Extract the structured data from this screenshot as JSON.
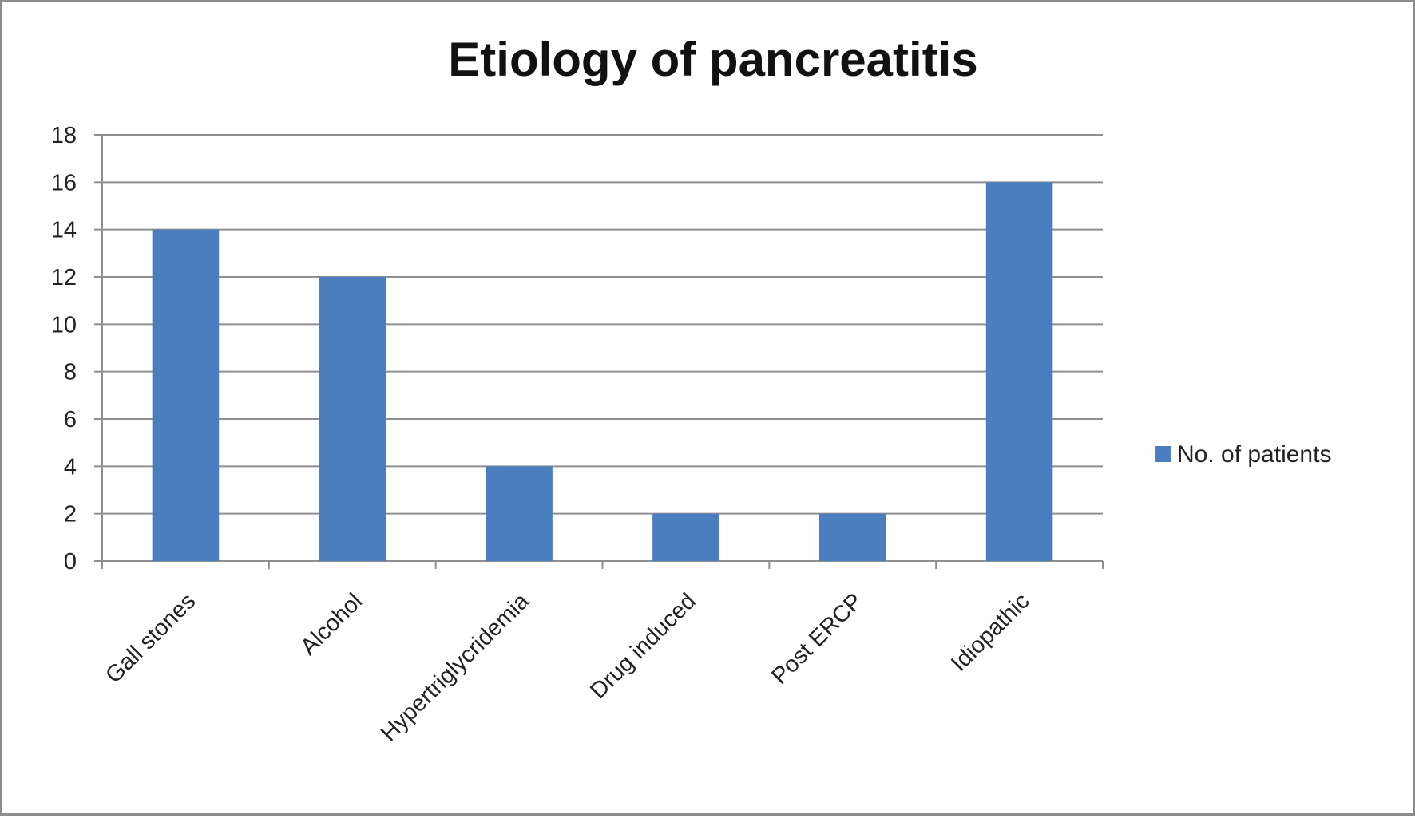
{
  "chart_data": {
    "type": "bar",
    "title": "Etiology of pancreatitis",
    "categories": [
      "Gall stones",
      "Alcohol",
      "Hypertriglycridemia",
      "Drug induced",
      "Post ERCP",
      "Idiopathic"
    ],
    "series": [
      {
        "name": "No. of patients",
        "values": [
          14,
          12,
          4,
          2,
          2,
          16
        ]
      }
    ],
    "y_ticks": [
      "0",
      "2",
      "4",
      "6",
      "8",
      "10",
      "12",
      "14",
      "16",
      "18"
    ],
    "ylim": [
      0,
      18
    ],
    "grid": true,
    "legend_position": "right",
    "bar_color": "#4a7ebf"
  }
}
